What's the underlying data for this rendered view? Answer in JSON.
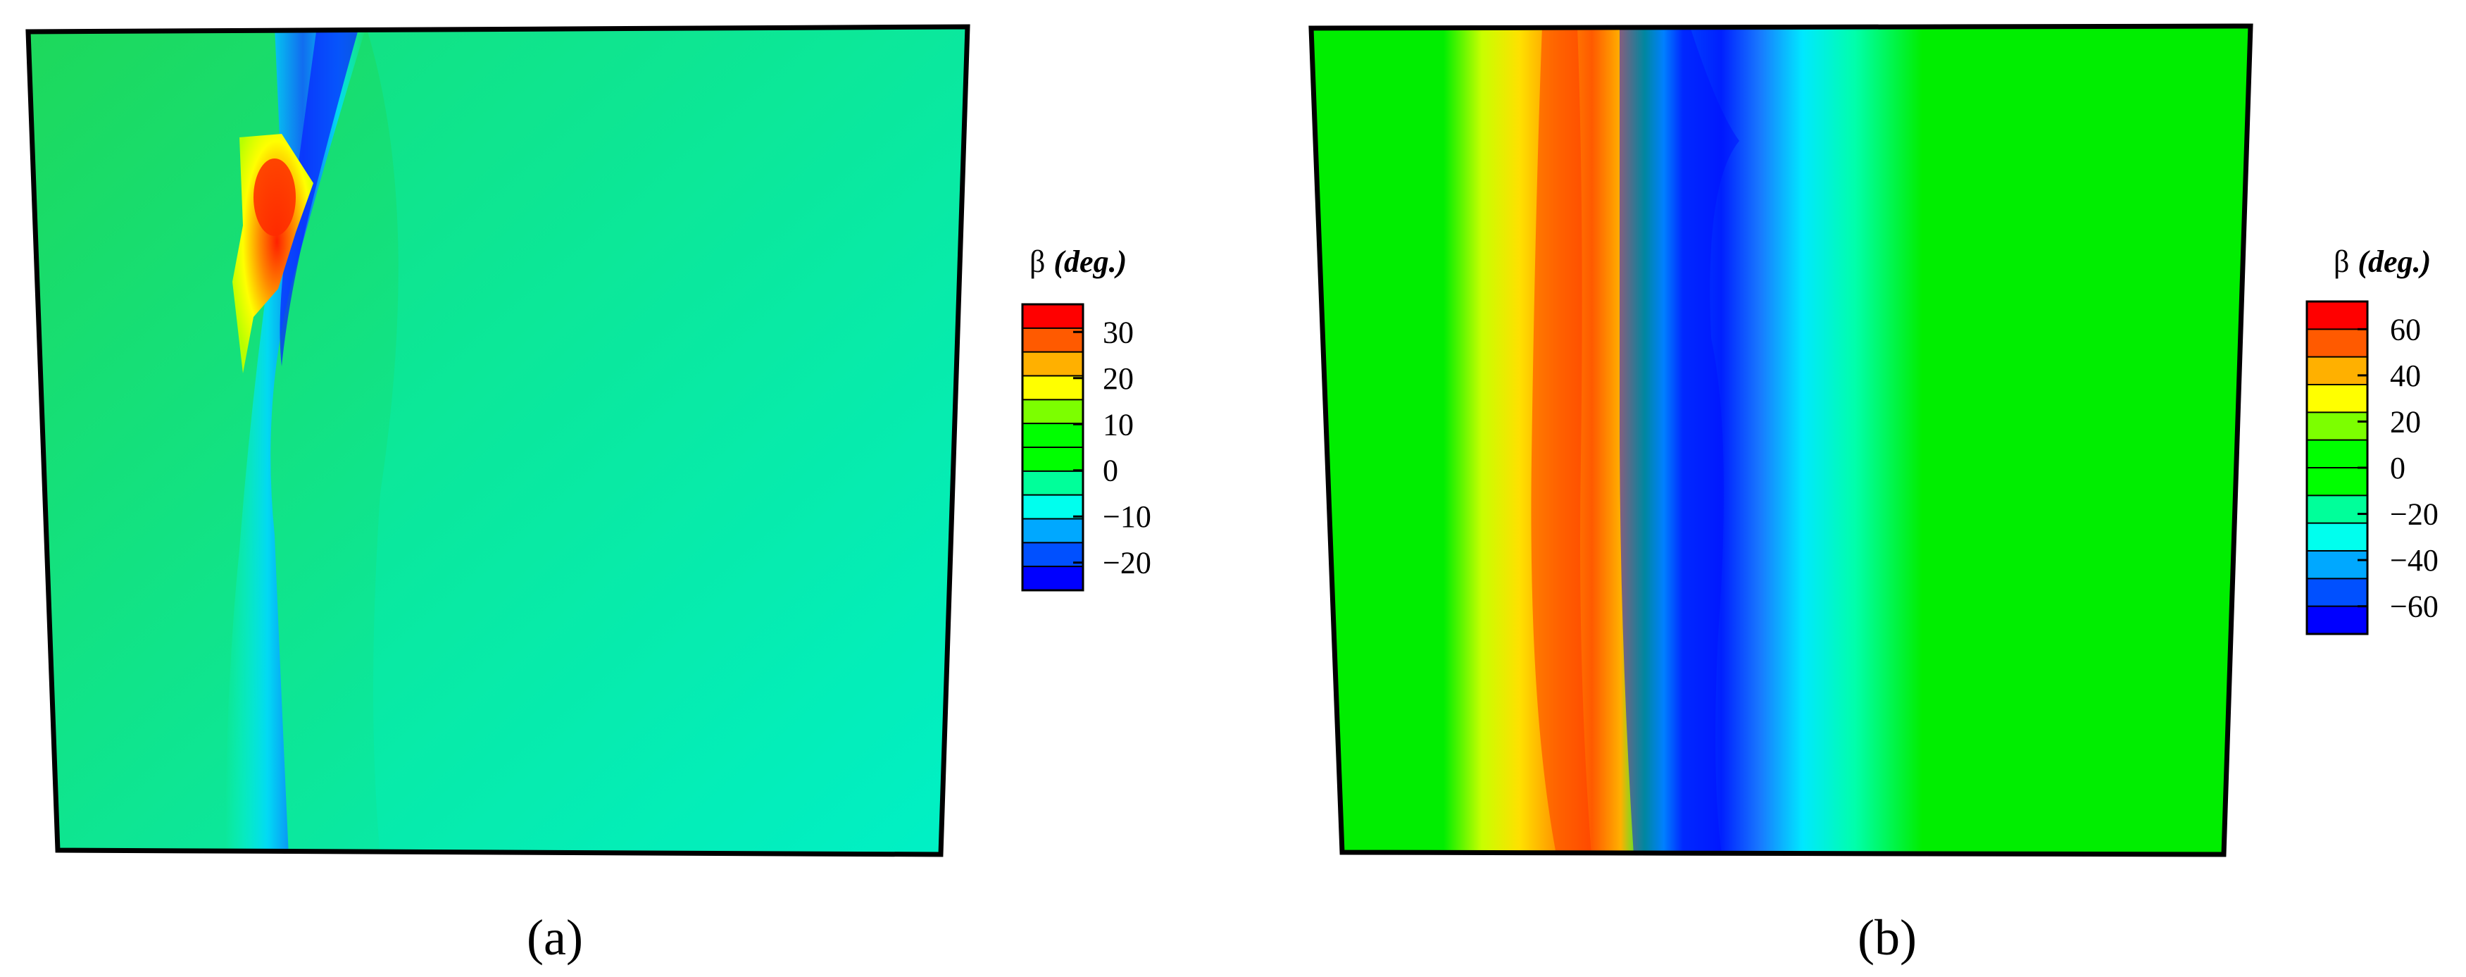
{
  "chart_data": [
    {
      "type": "heatmap",
      "panel_label": "(a)",
      "colorbar": {
        "title_symbol": "β",
        "title_unit": "(deg.)",
        "ticks": [
          "30",
          "20",
          "10",
          "0",
          "−10",
          "−20"
        ],
        "tick_values": [
          30,
          20,
          10,
          0,
          -10,
          -20
        ],
        "range": [
          -26,
          36
        ]
      },
      "colors": {
        "background": "#00e07a",
        "low": "#0000ff",
        "negative": "#00ffee",
        "zero": "#00ff00",
        "positive": "#ffff00",
        "high": "#ff0000"
      },
      "features": [
        {
          "name": "low-beta band",
          "min_value": -22
        },
        {
          "name": "high-beta spot",
          "max_value": 32
        }
      ]
    },
    {
      "type": "heatmap",
      "panel_label": "(b)",
      "colorbar": {
        "title_symbol": "β",
        "title_unit": "(deg.)",
        "ticks": [
          "60",
          "40",
          "20",
          "0",
          "−20",
          "−40",
          "−60"
        ],
        "tick_values": [
          60,
          40,
          20,
          0,
          -20,
          -40,
          -60
        ],
        "range": [
          -72,
          72
        ]
      },
      "colors": {
        "background": "#00ee00",
        "low": "#0000ff",
        "negative": "#00ffee",
        "zero": "#00ff00",
        "positive": "#ffff00",
        "high": "#ff0000"
      },
      "features": [
        {
          "name": "high-beta band",
          "max_value": 65
        },
        {
          "name": "low-beta band",
          "min_value": -68
        }
      ]
    }
  ]
}
